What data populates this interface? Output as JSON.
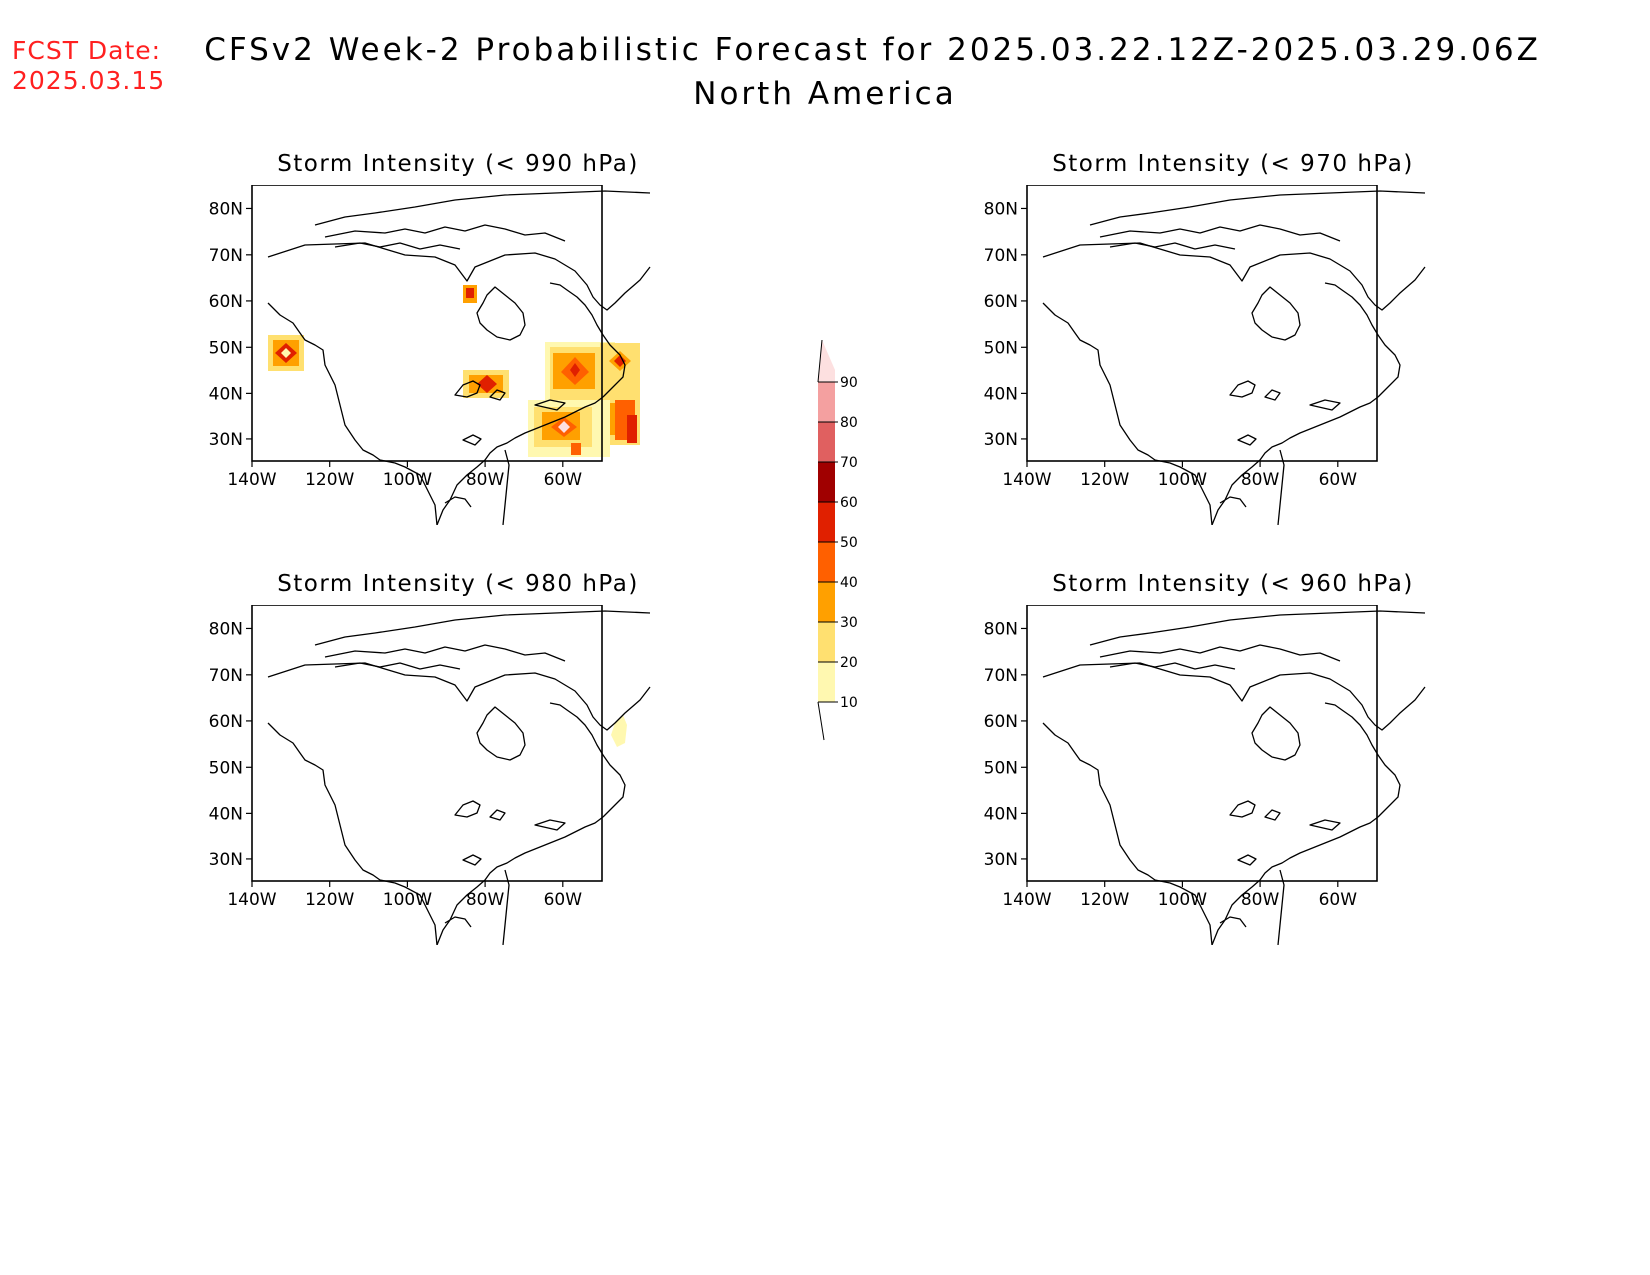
{
  "header": {
    "fcst_label": "FCST Date:",
    "fcst_date": "2025.03.15",
    "title": "CFSv2 Week-2 Probabilistic Forecast for 2025.03.22.12Z-2025.03.29.06Z",
    "subtitle": "North America"
  },
  "axes": {
    "lat_ticks": [
      "80N",
      "70N",
      "60N",
      "50N",
      "40N",
      "30N"
    ],
    "lon_ticks": [
      "140W",
      "120W",
      "100W",
      "80W",
      "60W"
    ]
  },
  "panels": [
    {
      "id": "p990",
      "title": "Storm Intensity (< 990 hPa)"
    },
    {
      "id": "p970",
      "title": "Storm Intensity (< 970 hPa)"
    },
    {
      "id": "p980",
      "title": "Storm Intensity (< 980 hPa)"
    },
    {
      "id": "p960",
      "title": "Storm Intensity (< 960 hPa)"
    }
  ],
  "colorbar": {
    "labels": [
      "90",
      "80",
      "70",
      "60",
      "50",
      "40",
      "30",
      "20",
      "10"
    ],
    "colors": [
      "#fde0e0",
      "#f4a0a0",
      "#e06060",
      "#a00000",
      "#e02000",
      "#ff6000",
      "#ffa000",
      "#ffe070",
      "#fff8b0"
    ]
  },
  "colors": {
    "fcst_text": "#ff2020",
    "coastline": "#000000"
  }
}
